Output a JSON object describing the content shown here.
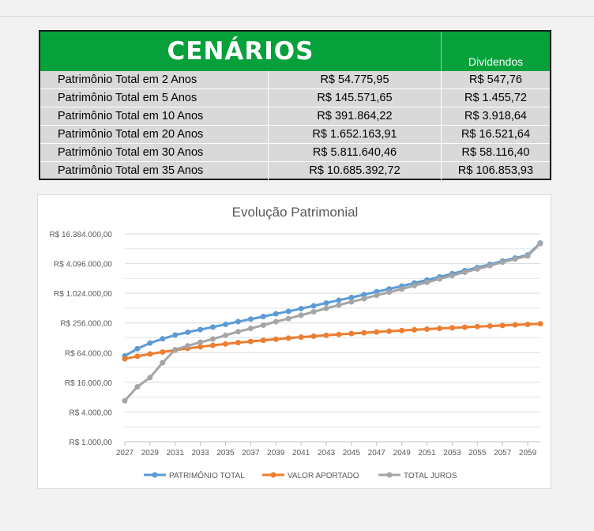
{
  "table": {
    "title": "CENÁRIOS",
    "dividends_header": "Dividendos",
    "rows": [
      {
        "label": "Patrimônio Total em 2 Anos",
        "total": "R$ 54.775,95",
        "dividend": "R$ 547,76"
      },
      {
        "label": "Patrimônio Total em 5 Anos",
        "total": "R$ 145.571,65",
        "dividend": "R$ 1.455,72"
      },
      {
        "label": "Patrimônio Total em 10 Anos",
        "total": "R$ 391.864,22",
        "dividend": "R$ 3.918,64"
      },
      {
        "label": "Patrimônio Total em 20 Anos",
        "total": "R$ 1.652.163,91",
        "dividend": "R$ 16.521,64"
      },
      {
        "label": "Patrimônio Total em 30 Anos",
        "total": "R$ 5.811.640,46",
        "dividend": "R$ 58.116,40"
      },
      {
        "label": "Patrimônio Total em 35 Anos",
        "total": "R$ 10.685.392,72",
        "dividend": "R$ 106.853,93"
      }
    ]
  },
  "colors": {
    "header_green": "#07a13b",
    "row_gray": "#d9d9d9",
    "blue": "#5b9bd5",
    "orange": "#ed7d31",
    "gray": "#a5a5a5"
  },
  "chart_data": {
    "type": "line",
    "title": "Evolução Patrimonial",
    "y_scale": "log2",
    "ylim": [
      1000,
      16384000
    ],
    "y_ticks": [
      1000,
      4000,
      16000,
      64000,
      256000,
      1024000,
      4096000,
      16384000
    ],
    "y_tick_labels": [
      "R$ 1.000,00",
      "R$ 4.000,00",
      "R$ 16.000,00",
      "R$ 64.000,00",
      "R$ 256.000,00",
      "R$ 1.024.000,00",
      "R$ 4.096.000,00",
      "R$ 16.384.000,00"
    ],
    "x_tick_labels": [
      "2027",
      "2029",
      "2031",
      "2033",
      "2035",
      "2037",
      "2039",
      "2041",
      "2043",
      "2045",
      "2047",
      "2049",
      "2051",
      "2053",
      "2055",
      "2057",
      "2059"
    ],
    "x": [
      2027,
      2028,
      2029,
      2030,
      2031,
      2032,
      2033,
      2034,
      2035,
      2036,
      2037,
      2038,
      2039,
      2040,
      2041,
      2042,
      2043,
      2044,
      2045,
      2046,
      2047,
      2048,
      2049,
      2050,
      2051,
      2052,
      2053,
      2054,
      2055,
      2056,
      2057,
      2058,
      2059,
      2060
    ],
    "grid": true,
    "legend_position": "bottom",
    "series": [
      {
        "name": "PATRIMÔNIO TOTAL",
        "color": "#5b9bd5",
        "values": [
          54776,
          77000,
          100000,
          122000,
          145572,
          166000,
          188000,
          211000,
          240000,
          272000,
          306000,
          345000,
          391864,
          440000,
          500000,
          570000,
          650000,
          740000,
          840000,
          960000,
          1100000,
          1250000,
          1430000,
          1652164,
          1900000,
          2200000,
          2550000,
          2950000,
          3400000,
          3950000,
          4600000,
          5300000,
          6100000,
          10685393
        ]
      },
      {
        "name": "VALOR APORTADO",
        "color": "#ed7d31",
        "values": [
          48000,
          54000,
          60000,
          66000,
          72000,
          78000,
          84000,
          90000,
          96000,
          102000,
          108000,
          114000,
          120000,
          126000,
          132000,
          138000,
          144000,
          150000,
          156000,
          162000,
          168000,
          174000,
          180000,
          186000,
          192000,
          198000,
          204000,
          210000,
          216000,
          222000,
          228000,
          234000,
          240000,
          246000
        ]
      },
      {
        "name": "TOTAL JUROS",
        "color": "#a5a5a5",
        "values": [
          6776,
          13000,
          20000,
          40000,
          73572,
          88000,
          104000,
          121000,
          144000,
          170000,
          198000,
          231000,
          271864,
          314000,
          368000,
          432000,
          506000,
          590000,
          684000,
          798000,
          932000,
          1076000,
          1250000,
          1466164,
          1708000,
          2002000,
          2346000,
          2740000,
          3184000,
          3728000,
          4372000,
          5066000,
          5860000,
          10439393
        ]
      }
    ]
  }
}
